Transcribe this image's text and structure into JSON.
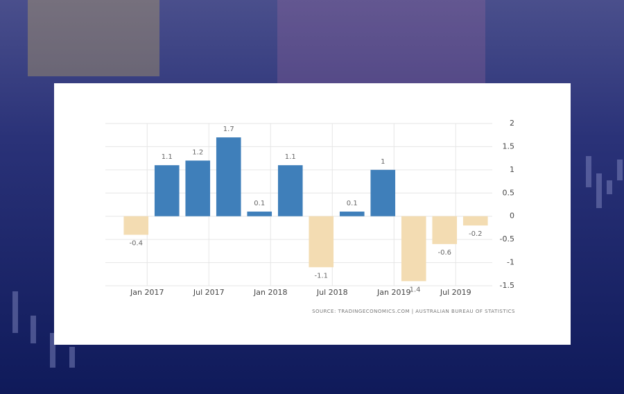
{
  "chart_data": {
    "type": "bar",
    "categories": [
      "Jan 2017",
      null,
      "Jul 2017",
      null,
      "Jan 2018",
      null,
      "Jul 2018",
      null,
      "Jan 2019",
      null,
      "Jul 2019",
      null
    ],
    "values": [
      -0.4,
      1.1,
      1.2,
      1.7,
      0.1,
      1.1,
      -1.1,
      0.1,
      1,
      -1.4,
      -0.6,
      -0.2
    ],
    "color": "#3f7fba",
    "negative_color": "#f3dcb2",
    "ylim": [
      -1.5,
      2
    ],
    "yticks": [
      2,
      1.5,
      1,
      0.5,
      0,
      -0.5,
      -1,
      -1.5
    ],
    "grid": true,
    "source": "SOURCE: TRADINGECONOMICS.COM | AUSTRALIAN BUREAU OF STATISTICS"
  }
}
